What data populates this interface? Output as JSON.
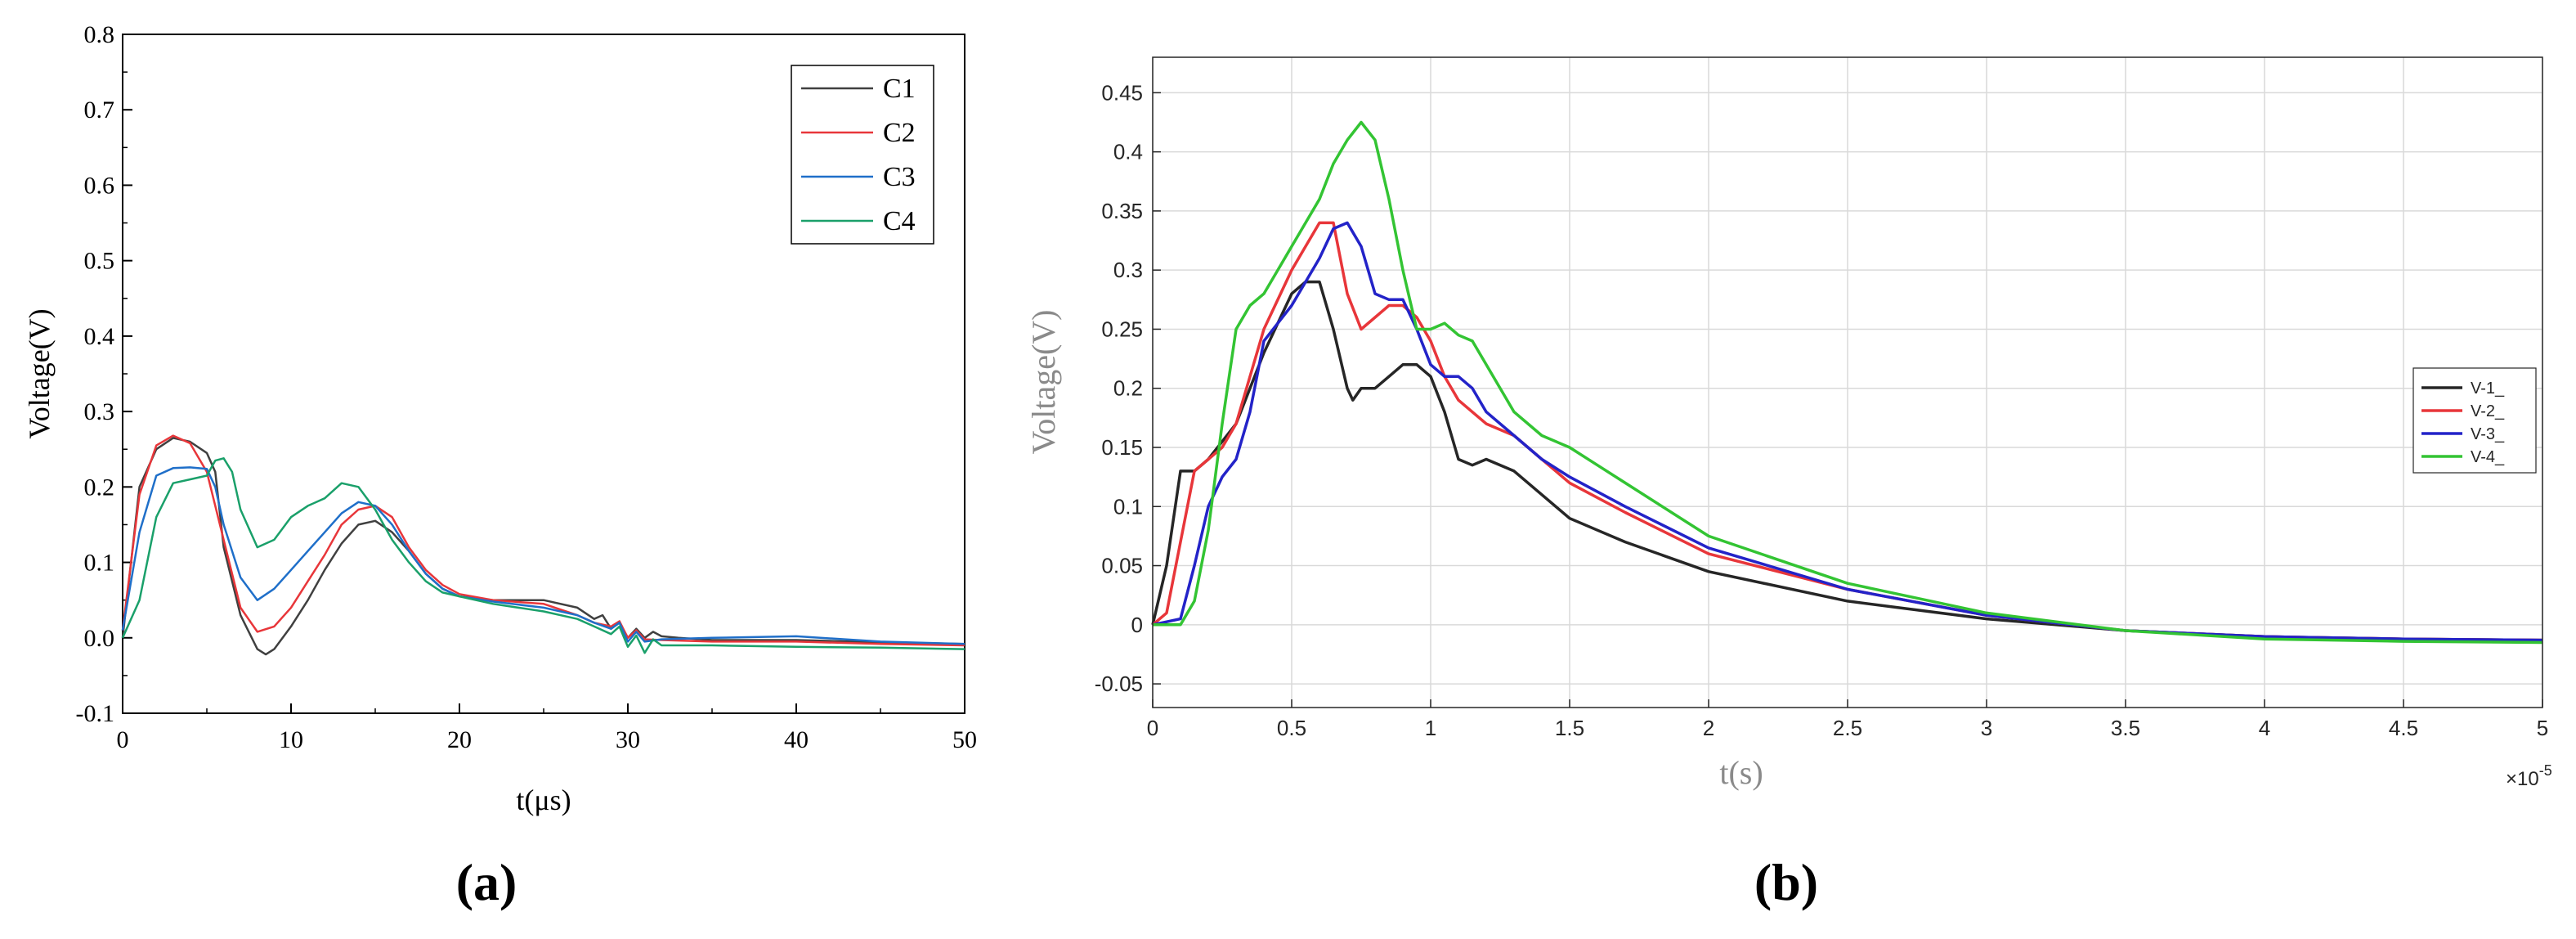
{
  "chart_data": [
    {
      "type": "line",
      "panel_label": "(a)",
      "title": "",
      "xlabel": "t(μs)",
      "ylabel": "Voltage(V)",
      "xlim": [
        0,
        50
      ],
      "ylim": [
        -0.1,
        0.8
      ],
      "xticks": [
        0,
        10,
        20,
        30,
        40,
        50
      ],
      "yticks": [
        -0.1,
        0.0,
        0.1,
        0.2,
        0.3,
        0.4,
        0.5,
        0.6,
        0.7,
        0.8
      ],
      "ytick_labels": [
        "-0.1",
        "0.0",
        "0.1",
        "0.2",
        "0.3",
        "0.4",
        "0.5",
        "0.6",
        "0.7",
        "0.8"
      ],
      "grid": false,
      "legend_position": "top-right",
      "series": [
        {
          "name": "C1",
          "color": "#404040",
          "x": [
            0,
            1,
            2,
            3,
            4,
            5,
            5.5,
            6,
            7,
            8,
            8.5,
            9,
            10,
            11,
            12,
            13,
            14,
            15,
            16,
            17,
            18,
            19,
            20,
            22,
            25,
            27,
            28,
            28.5,
            29,
            29.5,
            30,
            30.5,
            31,
            31.5,
            32,
            33,
            35,
            40,
            45,
            50
          ],
          "y": [
            0.0,
            0.2,
            0.25,
            0.265,
            0.26,
            0.245,
            0.22,
            0.12,
            0.03,
            -0.015,
            -0.022,
            -0.015,
            0.015,
            0.05,
            0.09,
            0.125,
            0.15,
            0.155,
            0.14,
            0.115,
            0.085,
            0.065,
            0.055,
            0.05,
            0.05,
            0.04,
            0.025,
            0.03,
            0.012,
            0.02,
            0.0,
            0.012,
            0.0,
            0.008,
            0.002,
            0.0,
            -0.003,
            -0.003,
            -0.006,
            -0.008
          ]
        },
        {
          "name": "C2",
          "color": "#e8363a",
          "x": [
            0,
            1,
            2,
            3,
            4,
            5,
            6,
            7,
            8,
            9,
            10,
            11,
            12,
            13,
            14,
            15,
            16,
            17,
            18,
            19,
            20,
            22,
            25,
            27,
            28,
            29,
            29.5,
            30,
            30.5,
            31,
            32,
            35,
            40,
            45,
            50
          ],
          "y": [
            0.01,
            0.19,
            0.255,
            0.268,
            0.258,
            0.22,
            0.13,
            0.04,
            0.008,
            0.015,
            0.04,
            0.075,
            0.11,
            0.15,
            0.17,
            0.175,
            0.16,
            0.12,
            0.09,
            0.07,
            0.058,
            0.05,
            0.045,
            0.03,
            0.02,
            0.015,
            0.022,
            0.0,
            0.01,
            -0.002,
            -0.003,
            -0.005,
            -0.005,
            -0.008,
            -0.01
          ]
        },
        {
          "name": "C3",
          "color": "#1f6fc9",
          "x": [
            0,
            1,
            2,
            3,
            4,
            5,
            5.5,
            6,
            7,
            8,
            9,
            10,
            11,
            12,
            13,
            14,
            15,
            16,
            17,
            18,
            19,
            20,
            22,
            25,
            27,
            28,
            29,
            29.5,
            30,
            30.5,
            31,
            32,
            35,
            40,
            45,
            50
          ],
          "y": [
            0.01,
            0.14,
            0.215,
            0.225,
            0.226,
            0.224,
            0.2,
            0.15,
            0.08,
            0.05,
            0.065,
            0.09,
            0.115,
            0.14,
            0.165,
            0.18,
            0.175,
            0.15,
            0.115,
            0.085,
            0.065,
            0.055,
            0.048,
            0.04,
            0.03,
            0.02,
            0.012,
            0.02,
            -0.005,
            0.008,
            -0.005,
            -0.002,
            0.0,
            0.002,
            -0.005,
            -0.008
          ]
        },
        {
          "name": "C4",
          "color": "#1aa06a",
          "x": [
            0,
            1,
            2,
            3,
            4,
            5,
            5.5,
            6,
            6.5,
            7,
            8,
            9,
            10,
            11,
            12,
            13,
            14,
            15,
            16,
            17,
            18,
            19,
            20,
            22,
            25,
            27,
            28,
            29,
            29.5,
            30,
            30.5,
            31,
            31.5,
            32,
            35,
            40,
            45,
            50
          ],
          "y": [
            0.0,
            0.05,
            0.16,
            0.205,
            0.21,
            0.215,
            0.235,
            0.238,
            0.22,
            0.17,
            0.12,
            0.13,
            0.16,
            0.175,
            0.185,
            0.205,
            0.2,
            0.17,
            0.13,
            0.1,
            0.075,
            0.06,
            0.055,
            0.045,
            0.035,
            0.025,
            0.015,
            0.005,
            0.015,
            -0.012,
            0.003,
            -0.02,
            -0.002,
            -0.01,
            -0.01,
            -0.012,
            -0.013,
            -0.015
          ]
        }
      ]
    },
    {
      "type": "line",
      "panel_label": "(b)",
      "title": "",
      "xlabel": "t(s)",
      "ylabel": "Voltage(V)",
      "x_multiplier_base": "×10",
      "x_multiplier_exponent": "-5",
      "xlim": [
        0,
        5
      ],
      "ylim": [
        -0.07,
        0.48
      ],
      "xticks": [
        0,
        0.5,
        1,
        1.5,
        2,
        2.5,
        3,
        3.5,
        4,
        4.5,
        5
      ],
      "xtick_labels": [
        "0",
        "0.5",
        "1",
        "1.5",
        "2",
        "2.5",
        "3",
        "3.5",
        "4",
        "4.5",
        "5"
      ],
      "yticks": [
        -0.05,
        0,
        0.05,
        0.1,
        0.15,
        0.2,
        0.25,
        0.3,
        0.35,
        0.4,
        0.45
      ],
      "ytick_labels": [
        "-0.05",
        "0",
        "0.05",
        "0.1",
        "0.15",
        "0.2",
        "0.25",
        "0.3",
        "0.35",
        "0.4",
        "0.45"
      ],
      "grid": true,
      "legend_position": "right",
      "series": [
        {
          "name": "V-1_",
          "color": "#262626",
          "x": [
            0,
            0.05,
            0.1,
            0.15,
            0.2,
            0.3,
            0.4,
            0.5,
            0.55,
            0.6,
            0.65,
            0.7,
            0.72,
            0.75,
            0.8,
            0.85,
            0.9,
            0.95,
            1.0,
            1.05,
            1.1,
            1.15,
            1.2,
            1.3,
            1.4,
            1.5,
            1.6,
            1.7,
            2.0,
            2.5,
            3.0,
            3.5,
            4.0,
            4.5,
            5.0
          ],
          "y": [
            0.0,
            0.05,
            0.13,
            0.13,
            0.14,
            0.17,
            0.23,
            0.28,
            0.29,
            0.29,
            0.25,
            0.2,
            0.19,
            0.2,
            0.2,
            0.21,
            0.22,
            0.22,
            0.21,
            0.18,
            0.14,
            0.135,
            0.14,
            0.13,
            0.11,
            0.09,
            0.08,
            0.07,
            0.045,
            0.02,
            0.005,
            -0.005,
            -0.01,
            -0.012,
            -0.013
          ]
        },
        {
          "name": "V-2_",
          "color": "#e8363a",
          "x": [
            0,
            0.05,
            0.1,
            0.15,
            0.2,
            0.25,
            0.3,
            0.4,
            0.5,
            0.55,
            0.6,
            0.65,
            0.7,
            0.75,
            0.8,
            0.85,
            0.9,
            0.95,
            1.0,
            1.05,
            1.1,
            1.2,
            1.3,
            1.4,
            1.5,
            1.7,
            2.0,
            2.5,
            3.0,
            3.5,
            4.0,
            4.5,
            5.0
          ],
          "y": [
            0.0,
            0.01,
            0.07,
            0.13,
            0.14,
            0.15,
            0.17,
            0.25,
            0.3,
            0.32,
            0.34,
            0.34,
            0.28,
            0.25,
            0.26,
            0.27,
            0.27,
            0.26,
            0.24,
            0.21,
            0.19,
            0.17,
            0.16,
            0.14,
            0.12,
            0.095,
            0.06,
            0.03,
            0.008,
            -0.005,
            -0.01,
            -0.012,
            -0.013
          ]
        },
        {
          "name": "V-3_",
          "color": "#2323c8",
          "x": [
            0,
            0.1,
            0.15,
            0.2,
            0.25,
            0.3,
            0.35,
            0.4,
            0.5,
            0.6,
            0.65,
            0.7,
            0.75,
            0.8,
            0.85,
            0.9,
            0.95,
            1.0,
            1.05,
            1.1,
            1.15,
            1.2,
            1.3,
            1.4,
            1.5,
            1.7,
            2.0,
            2.5,
            3.0,
            3.5,
            4.0,
            4.5,
            5.0
          ],
          "y": [
            0.0,
            0.005,
            0.05,
            0.1,
            0.125,
            0.14,
            0.18,
            0.24,
            0.27,
            0.31,
            0.335,
            0.34,
            0.32,
            0.28,
            0.275,
            0.275,
            0.25,
            0.22,
            0.21,
            0.21,
            0.2,
            0.18,
            0.16,
            0.14,
            0.125,
            0.1,
            0.065,
            0.03,
            0.008,
            -0.005,
            -0.01,
            -0.012,
            -0.013
          ]
        },
        {
          "name": "V-4_",
          "color": "#33c433",
          "x": [
            0,
            0.1,
            0.15,
            0.2,
            0.25,
            0.3,
            0.35,
            0.4,
            0.45,
            0.5,
            0.55,
            0.6,
            0.65,
            0.7,
            0.75,
            0.8,
            0.85,
            0.9,
            0.95,
            1.0,
            1.05,
            1.1,
            1.15,
            1.2,
            1.3,
            1.4,
            1.5,
            1.6,
            1.7,
            2.0,
            2.5,
            3.0,
            3.5,
            4.0,
            4.5,
            5.0
          ],
          "y": [
            0.0,
            0.0,
            0.02,
            0.08,
            0.17,
            0.25,
            0.27,
            0.28,
            0.3,
            0.32,
            0.34,
            0.36,
            0.39,
            0.41,
            0.425,
            0.41,
            0.36,
            0.3,
            0.25,
            0.25,
            0.255,
            0.245,
            0.24,
            0.22,
            0.18,
            0.16,
            0.15,
            0.135,
            0.12,
            0.075,
            0.035,
            0.01,
            -0.005,
            -0.012,
            -0.014,
            -0.015
          ]
        }
      ]
    }
  ]
}
